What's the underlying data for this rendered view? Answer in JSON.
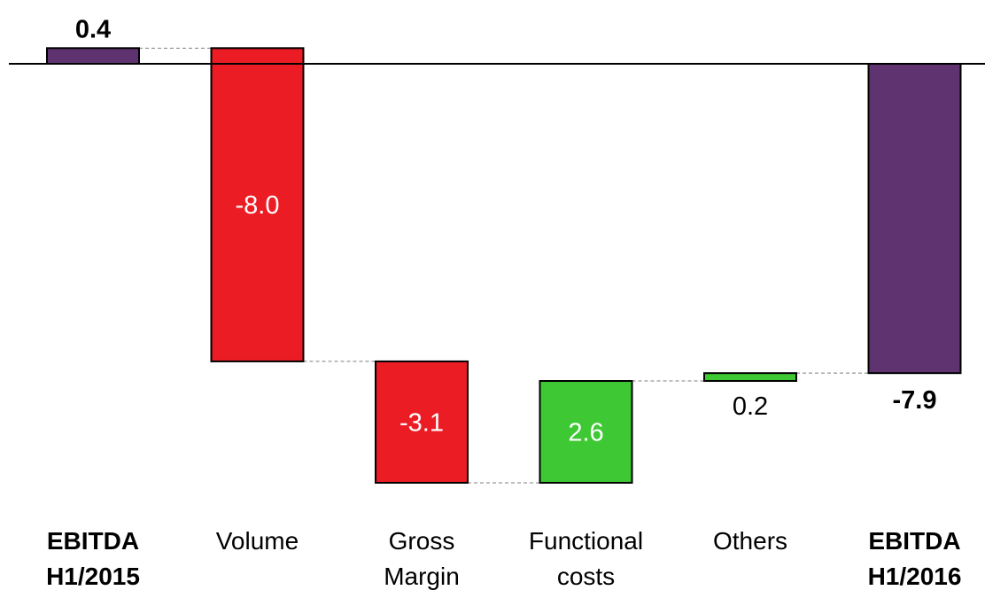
{
  "chart_data": {
    "type": "bar",
    "subtype": "waterfall",
    "title": "",
    "xlabel": "",
    "ylabel": "",
    "ylim": [
      -10.7,
      0.6
    ],
    "categories": [
      [
        "EBITDA",
        "H1/2015"
      ],
      [
        "Volume"
      ],
      [
        "Gross",
        "Margin"
      ],
      [
        "Functional",
        "costs"
      ],
      [
        "Others"
      ],
      [
        "EBITDA",
        "H1/2016"
      ]
    ],
    "values": [
      0.4,
      -8.0,
      -3.1,
      2.6,
      0.2,
      -7.9
    ],
    "value_labels": [
      "0.4",
      "-8.0",
      "-3.1",
      "2.6",
      "0.2",
      "-7.9"
    ],
    "kinds": [
      "total",
      "delta",
      "delta",
      "delta",
      "delta",
      "total"
    ],
    "colors": {
      "total": "#5f3370",
      "decrease": "#ec1c24",
      "increase": "#3ec934"
    },
    "grid": false,
    "legend": "none"
  }
}
